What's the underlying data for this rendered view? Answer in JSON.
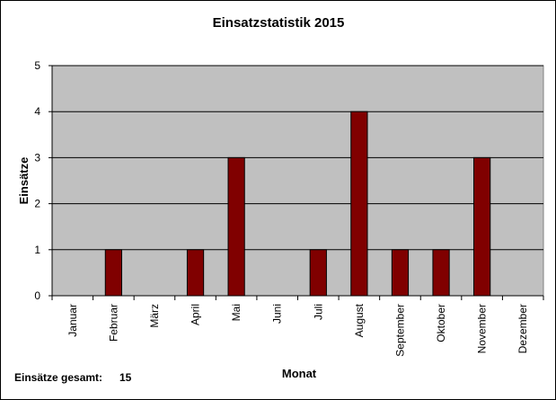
{
  "chart_data": {
    "type": "bar",
    "title": "Einsatzstatistik 2015",
    "xlabel": "Monat",
    "ylabel": "Einsätze",
    "categories": [
      "Januar",
      "Februar",
      "März",
      "April",
      "Mai",
      "Juni",
      "Juli",
      "August",
      "September",
      "Oktober",
      "November",
      "Dezember"
    ],
    "values": [
      0,
      1,
      0,
      1,
      3,
      0,
      1,
      4,
      1,
      1,
      3,
      0
    ],
    "ylim": [
      0,
      5
    ],
    "yticks": [
      0,
      1,
      2,
      3,
      4,
      5
    ],
    "grid": true,
    "legend": "none",
    "colors": {
      "bar": "#800000",
      "plot_background": "#c0c0c0",
      "gridline": "#000000"
    }
  },
  "summary": {
    "label": "Einsätze gesamt:",
    "value": "15"
  }
}
